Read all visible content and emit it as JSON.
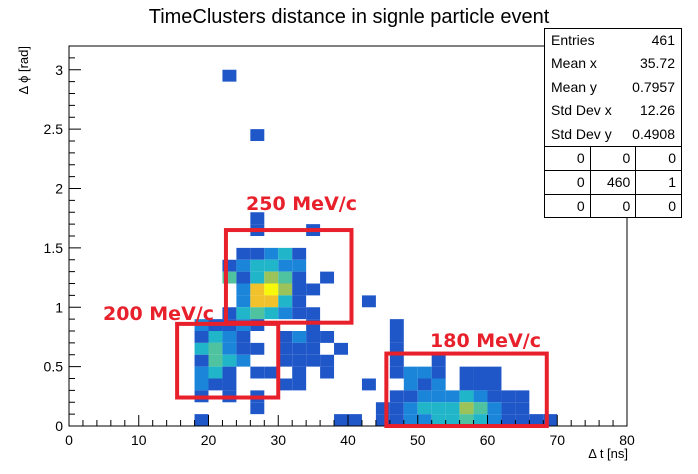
{
  "chart_data": {
    "type": "heatmap",
    "title": "TimeClusters distance in signle particle event",
    "xlabel": "Δ t [ns]",
    "ylabel": "Δ ϕ [rad]",
    "xlim": [
      0,
      80
    ],
    "ylim": [
      0,
      3.2
    ],
    "x_ticks": [
      "0",
      "10",
      "20",
      "30",
      "40",
      "50",
      "60",
      "70",
      "80"
    ],
    "y_ticks": [
      "0",
      "0.5",
      "1",
      "1.5",
      "2",
      "2.5",
      "3"
    ],
    "bin_width_x": 2,
    "bin_height_y": 0.1,
    "colors": {
      "c1": "#1f57c8",
      "c2": "#1b86d9",
      "c3": "#20b5c9",
      "c4": "#4fc2a0",
      "c5": "#9cc35a",
      "c6": "#f2c22c",
      "c7": "#f8f80c"
    },
    "bins": [
      [
        22,
        2.9,
        1
      ],
      [
        26,
        2.4,
        1
      ],
      [
        26,
        1.7,
        1
      ],
      [
        26,
        1.6,
        1
      ],
      [
        34,
        1.6,
        1
      ],
      [
        24,
        1.4,
        1
      ],
      [
        26,
        1.4,
        1
      ],
      [
        28,
        1.4,
        2
      ],
      [
        30,
        1.4,
        3
      ],
      [
        32,
        1.4,
        1
      ],
      [
        22,
        1.3,
        1
      ],
      [
        24,
        1.3,
        2
      ],
      [
        26,
        1.3,
        3
      ],
      [
        28,
        1.3,
        3
      ],
      [
        30,
        1.3,
        2
      ],
      [
        32,
        1.3,
        2
      ],
      [
        22,
        1.2,
        4
      ],
      [
        24,
        1.2,
        1
      ],
      [
        26,
        1.2,
        3
      ],
      [
        28,
        1.2,
        5
      ],
      [
        30,
        1.2,
        4
      ],
      [
        32,
        1.2,
        1
      ],
      [
        36,
        1.2,
        1
      ],
      [
        24,
        1.1,
        2
      ],
      [
        26,
        1.1,
        6
      ],
      [
        28,
        1.1,
        7
      ],
      [
        30,
        1.1,
        5
      ],
      [
        32,
        1.1,
        1
      ],
      [
        34,
        1.1,
        1
      ],
      [
        24,
        1.0,
        2
      ],
      [
        26,
        1.0,
        6
      ],
      [
        28,
        1.0,
        6
      ],
      [
        30,
        1.0,
        3
      ],
      [
        32,
        1.0,
        1
      ],
      [
        42,
        1.0,
        1
      ],
      [
        22,
        0.9,
        1
      ],
      [
        24,
        0.9,
        3
      ],
      [
        26,
        0.9,
        4
      ],
      [
        28,
        0.9,
        3
      ],
      [
        30,
        0.9,
        2
      ],
      [
        32,
        0.9,
        1
      ],
      [
        34,
        0.9,
        1
      ],
      [
        18,
        0.8,
        2
      ],
      [
        20,
        0.8,
        1
      ],
      [
        22,
        0.8,
        1
      ],
      [
        24,
        0.8,
        2
      ],
      [
        26,
        0.8,
        1
      ],
      [
        34,
        0.8,
        1
      ],
      [
        46,
        0.8,
        1
      ],
      [
        18,
        0.7,
        1
      ],
      [
        20,
        0.7,
        3
      ],
      [
        22,
        0.7,
        2
      ],
      [
        24,
        0.7,
        1
      ],
      [
        30,
        0.7,
        1
      ],
      [
        32,
        0.7,
        2
      ],
      [
        34,
        0.7,
        1
      ],
      [
        36,
        0.7,
        1
      ],
      [
        46,
        0.7,
        1
      ],
      [
        18,
        0.6,
        3
      ],
      [
        20,
        0.6,
        4
      ],
      [
        22,
        0.6,
        2
      ],
      [
        24,
        0.6,
        1
      ],
      [
        26,
        0.6,
        1
      ],
      [
        30,
        0.6,
        1
      ],
      [
        32,
        0.6,
        1
      ],
      [
        34,
        0.6,
        1
      ],
      [
        38,
        0.6,
        1
      ],
      [
        46,
        0.6,
        1
      ],
      [
        18,
        0.5,
        1
      ],
      [
        20,
        0.5,
        4
      ],
      [
        22,
        0.5,
        3
      ],
      [
        24,
        0.5,
        2
      ],
      [
        30,
        0.5,
        1
      ],
      [
        32,
        0.5,
        1
      ],
      [
        34,
        0.5,
        1
      ],
      [
        36,
        0.5,
        1
      ],
      [
        46,
        0.5,
        1
      ],
      [
        52,
        0.5,
        1
      ],
      [
        18,
        0.4,
        2
      ],
      [
        20,
        0.4,
        3
      ],
      [
        22,
        0.4,
        1
      ],
      [
        26,
        0.4,
        1
      ],
      [
        28,
        0.4,
        1
      ],
      [
        32,
        0.4,
        1
      ],
      [
        36,
        0.4,
        1
      ],
      [
        46,
        0.4,
        1
      ],
      [
        48,
        0.4,
        2
      ],
      [
        50,
        0.4,
        2
      ],
      [
        52,
        0.4,
        1
      ],
      [
        56,
        0.4,
        1
      ],
      [
        58,
        0.4,
        1
      ],
      [
        60,
        0.4,
        1
      ],
      [
        18,
        0.3,
        2
      ],
      [
        20,
        0.3,
        1
      ],
      [
        22,
        0.3,
        1
      ],
      [
        30,
        0.3,
        1
      ],
      [
        32,
        0.3,
        1
      ],
      [
        42,
        0.3,
        1
      ],
      [
        48,
        0.3,
        2
      ],
      [
        50,
        0.3,
        1
      ],
      [
        52,
        0.3,
        2
      ],
      [
        56,
        0.3,
        1
      ],
      [
        58,
        0.3,
        1
      ],
      [
        60,
        0.3,
        1
      ],
      [
        18,
        0.2,
        1
      ],
      [
        22,
        0.2,
        1
      ],
      [
        26,
        0.2,
        1
      ],
      [
        46,
        0.2,
        1
      ],
      [
        48,
        0.2,
        1
      ],
      [
        50,
        0.2,
        2
      ],
      [
        52,
        0.2,
        2
      ],
      [
        54,
        0.2,
        2
      ],
      [
        56,
        0.2,
        3
      ],
      [
        58,
        0.2,
        2
      ],
      [
        60,
        0.2,
        1
      ],
      [
        62,
        0.2,
        1
      ],
      [
        64,
        0.2,
        1
      ],
      [
        26,
        0.1,
        1
      ],
      [
        44,
        0.1,
        1
      ],
      [
        46,
        0.1,
        1
      ],
      [
        48,
        0.1,
        2
      ],
      [
        50,
        0.1,
        3
      ],
      [
        52,
        0.1,
        3
      ],
      [
        54,
        0.1,
        3
      ],
      [
        56,
        0.1,
        5
      ],
      [
        58,
        0.1,
        4
      ],
      [
        60,
        0.1,
        2
      ],
      [
        62,
        0.1,
        1
      ],
      [
        64,
        0.1,
        1
      ],
      [
        18,
        0.0,
        1
      ],
      [
        38,
        0.0,
        1
      ],
      [
        40,
        0.0,
        1
      ],
      [
        44,
        0.0,
        1
      ],
      [
        46,
        0.0,
        1
      ],
      [
        48,
        0.0,
        2
      ],
      [
        50,
        0.0,
        2
      ],
      [
        52,
        0.0,
        3
      ],
      [
        54,
        0.0,
        3
      ],
      [
        56,
        0.0,
        4
      ],
      [
        58,
        0.0,
        3
      ],
      [
        60,
        0.0,
        2
      ],
      [
        62,
        0.0,
        1
      ],
      [
        64,
        0.0,
        1
      ],
      [
        66,
        0.0,
        1
      ],
      [
        68,
        0.0,
        1
      ]
    ],
    "annotations": [
      {
        "text": "250 MeV/c",
        "box": {
          "x0": 22.5,
          "x1": 40.5,
          "y0": 0.87,
          "y1": 1.65
        }
      },
      {
        "text": "200 MeV/c",
        "box": {
          "x0": 15.5,
          "x1": 30.0,
          "y0": 0.24,
          "y1": 0.86
        }
      },
      {
        "text": "180 MeV/c",
        "box": {
          "x0": 45.5,
          "x1": 68.5,
          "y0": 0.0,
          "y1": 0.61
        }
      }
    ],
    "stats": {
      "entries_label": "Entries",
      "entries": "461",
      "meanx_label": "Mean x",
      "meanx": "35.72",
      "meany_label": "Mean y",
      "meany": "0.7957",
      "stdx_label": "Std Dev x",
      "stdx": "12.26",
      "stdy_label": "Std Dev y",
      "stdy": "0.4908",
      "overflow": [
        [
          "0",
          "0",
          "0"
        ],
        [
          "0",
          "460",
          "1"
        ],
        [
          "0",
          "0",
          "0"
        ]
      ]
    }
  }
}
